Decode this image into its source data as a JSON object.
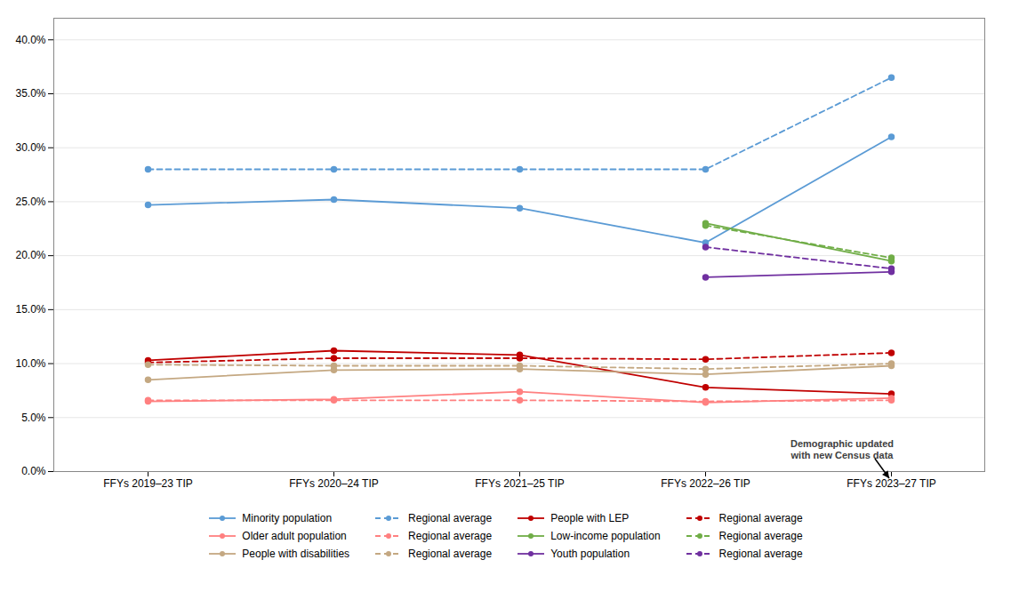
{
  "chart_data": {
    "type": "line",
    "categories": [
      "FFYs 2019–23 TIP",
      "FFYs 2020–24 TIP",
      "FFYs 2021–25 TIP",
      "FFYs 2022–26 TIP",
      "FFYs 2023–27 TIP"
    ],
    "series": [
      {
        "name": "Minority population",
        "color": "#5B9BD5",
        "line_style": "solid",
        "marker": "circle",
        "values": [
          0.247,
          0.252,
          0.244,
          0.212,
          0.31
        ]
      },
      {
        "name": "Regional average",
        "color": "#5B9BD5",
        "line_style": "dashed",
        "marker": "circle",
        "values": [
          0.28,
          0.28,
          0.28,
          0.28,
          0.365
        ]
      },
      {
        "name": "People with LEP",
        "color": "#C00000",
        "line_style": "solid",
        "marker": "circle",
        "values": [
          0.103,
          0.112,
          0.108,
          0.078,
          0.072
        ]
      },
      {
        "name": "Regional average",
        "color": "#C00000",
        "line_style": "dashed",
        "marker": "circle",
        "values": [
          0.101,
          0.105,
          0.105,
          0.104,
          0.11
        ]
      },
      {
        "name": "Older adult population",
        "color": "#FF8080",
        "line_style": "solid",
        "marker": "circle",
        "values": [
          0.065,
          0.067,
          0.074,
          0.064,
          0.068
        ]
      },
      {
        "name": "Regional average",
        "color": "#FF8080",
        "line_style": "dashed",
        "marker": "circle",
        "values": [
          0.066,
          0.066,
          0.066,
          0.065,
          0.066
        ]
      },
      {
        "name": "Low-income population",
        "color": "#70AD47",
        "line_style": "solid",
        "marker": "circle",
        "values": [
          null,
          null,
          null,
          0.23,
          0.195
        ]
      },
      {
        "name": "Regional average",
        "color": "#70AD47",
        "line_style": "dashed",
        "marker": "circle",
        "values": [
          null,
          null,
          null,
          0.228,
          0.198
        ]
      },
      {
        "name": "People with disabilities",
        "color": "#C4A882",
        "line_style": "solid",
        "marker": "circle",
        "values": [
          0.085,
          0.094,
          0.095,
          0.09,
          0.098
        ]
      },
      {
        "name": "Regional average",
        "color": "#C4A882",
        "line_style": "dashed",
        "marker": "circle",
        "values": [
          0.099,
          0.098,
          0.098,
          0.095,
          0.1
        ]
      },
      {
        "name": "Youth population",
        "color": "#7030A0",
        "line_style": "solid",
        "marker": "circle",
        "values": [
          null,
          null,
          null,
          0.18,
          0.185
        ]
      },
      {
        "name": "Regional average",
        "color": "#7030A0",
        "line_style": "dashed",
        "marker": "circle",
        "values": [
          null,
          null,
          null,
          0.208,
          0.188
        ]
      }
    ],
    "ylim": [
      0.0,
      0.42
    ],
    "yticks": [
      {
        "value": 0.0,
        "label": "0.0%"
      },
      {
        "value": 0.05,
        "label": "5.0%"
      },
      {
        "value": 0.1,
        "label": "10.0%"
      },
      {
        "value": 0.15,
        "label": "15.0%"
      },
      {
        "value": 0.2,
        "label": "20.0%"
      },
      {
        "value": 0.25,
        "label": "25.0%"
      },
      {
        "value": 0.3,
        "label": "30.0%"
      },
      {
        "value": 0.35,
        "label": "35.0%"
      },
      {
        "value": 0.4,
        "label": "40.0%"
      }
    ],
    "grid": true,
    "annotation": "Demographic updated\nwith new Census data"
  }
}
